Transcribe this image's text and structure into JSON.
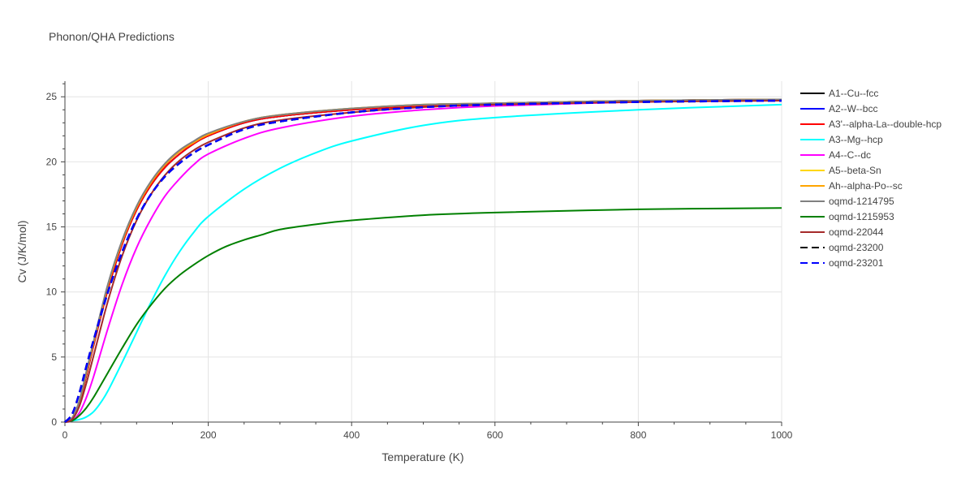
{
  "chart_data": {
    "type": "line",
    "title": "Phonon/QHA Predictions",
    "xlabel": "Temperature (K)",
    "ylabel": "Cv (J/K/mol)",
    "xlim": [
      0,
      1000
    ],
    "ylim": [
      0,
      26.2
    ],
    "xticks": [
      0,
      200,
      400,
      600,
      800,
      1000
    ],
    "yticks": [
      0,
      5,
      10,
      15,
      20,
      25
    ],
    "grid": true,
    "legend_position": "right",
    "series": [
      {
        "name": "A1--Cu--fcc",
        "color": "#000000",
        "dash": "solid",
        "x": [
          0,
          10,
          20,
          30,
          40,
          60,
          80,
          100,
          120,
          140,
          160,
          180,
          200,
          250,
          300,
          400,
          500,
          600,
          800,
          1000
        ],
        "y": [
          0,
          0.3,
          1.5,
          3.6,
          5.9,
          10.2,
          13.7,
          16.3,
          18.2,
          19.6,
          20.6,
          21.4,
          22.0,
          23.0,
          23.5,
          24.0,
          24.3,
          24.5,
          24.7,
          24.8
        ]
      },
      {
        "name": "A2--W--bcc",
        "color": "#0000ff",
        "dash": "solid",
        "x": [
          0,
          10,
          20,
          30,
          40,
          60,
          80,
          100,
          120,
          140,
          160,
          180,
          200,
          250,
          300,
          400,
          500,
          600,
          800,
          1000
        ],
        "y": [
          0,
          0.3,
          1.5,
          3.6,
          5.9,
          10.2,
          13.7,
          16.3,
          18.2,
          19.6,
          20.6,
          21.4,
          22.0,
          23.0,
          23.5,
          24.0,
          24.3,
          24.5,
          24.7,
          24.8
        ]
      },
      {
        "name": "A3'--alpha-La--double-hcp",
        "color": "#ff0000",
        "dash": "solid",
        "x": [
          0,
          10,
          20,
          30,
          40,
          60,
          80,
          100,
          120,
          140,
          160,
          180,
          200,
          250,
          300,
          400,
          500,
          600,
          800,
          1000
        ],
        "y": [
          0,
          0.3,
          1.5,
          3.6,
          5.9,
          10.2,
          13.7,
          16.3,
          18.2,
          19.6,
          20.6,
          21.4,
          22.0,
          23.0,
          23.5,
          24.0,
          24.3,
          24.5,
          24.7,
          24.8
        ]
      },
      {
        "name": "A3--Mg--hcp",
        "color": "#00ffff",
        "dash": "solid",
        "x": [
          0,
          20,
          30,
          40,
          50,
          60,
          80,
          100,
          120,
          140,
          160,
          180,
          200,
          250,
          300,
          350,
          400,
          500,
          600,
          800,
          1000
        ],
        "y": [
          0,
          0.2,
          0.4,
          0.8,
          1.5,
          2.4,
          4.6,
          6.9,
          9.2,
          11.3,
          13.1,
          14.6,
          15.8,
          17.9,
          19.5,
          20.7,
          21.6,
          22.8,
          23.4,
          24.0,
          24.4
        ]
      },
      {
        "name": "A4--C--dc",
        "color": "#ff00ff",
        "dash": "solid",
        "x": [
          0,
          10,
          20,
          30,
          40,
          60,
          80,
          100,
          120,
          140,
          160,
          180,
          200,
          250,
          300,
          400,
          500,
          600,
          800,
          1000
        ],
        "y": [
          0,
          0.1,
          0.7,
          1.9,
          3.5,
          7.2,
          10.6,
          13.4,
          15.6,
          17.4,
          18.7,
          19.8,
          20.6,
          21.8,
          22.6,
          23.5,
          24.0,
          24.3,
          24.6,
          24.8
        ]
      },
      {
        "name": "A5--beta-Sn",
        "color": "#ffd700",
        "dash": "solid",
        "x": [
          0,
          10,
          20,
          30,
          40,
          60,
          80,
          100,
          120,
          140,
          160,
          180,
          200,
          250,
          300,
          400,
          500,
          600,
          800,
          1000
        ],
        "y": [
          0,
          0.3,
          1.6,
          3.8,
          6.1,
          10.5,
          13.9,
          16.5,
          18.4,
          19.8,
          20.8,
          21.5,
          22.1,
          23.1,
          23.6,
          24.1,
          24.4,
          24.5,
          24.7,
          24.8
        ]
      },
      {
        "name": "Ah--alpha-Po--sc",
        "color": "#ffa500",
        "dash": "solid",
        "x": [
          0,
          10,
          20,
          30,
          40,
          60,
          80,
          100,
          120,
          140,
          160,
          180,
          200,
          250,
          300,
          400,
          500,
          600,
          800,
          1000
        ],
        "y": [
          0,
          0.3,
          1.6,
          3.8,
          6.1,
          10.5,
          13.9,
          16.5,
          18.4,
          19.8,
          20.8,
          21.5,
          22.1,
          23.1,
          23.6,
          24.1,
          24.4,
          24.5,
          24.7,
          24.8
        ]
      },
      {
        "name": "oqmd-1214795",
        "color": "#808080",
        "dash": "solid",
        "x": [
          0,
          10,
          20,
          30,
          40,
          60,
          80,
          100,
          120,
          140,
          160,
          180,
          200,
          250,
          300,
          400,
          500,
          600,
          800,
          1000
        ],
        "y": [
          0,
          0.3,
          1.6,
          3.9,
          6.2,
          10.6,
          14.0,
          16.6,
          18.5,
          19.9,
          20.9,
          21.6,
          22.2,
          23.1,
          23.6,
          24.1,
          24.4,
          24.5,
          24.7,
          24.8
        ]
      },
      {
        "name": "oqmd-1215953",
        "color": "#008000",
        "dash": "solid",
        "x": [
          0,
          10,
          20,
          30,
          40,
          60,
          80,
          100,
          120,
          140,
          160,
          180,
          200,
          225,
          250,
          275,
          300,
          350,
          400,
          500,
          600,
          800,
          1000
        ],
        "y": [
          0,
          0.1,
          0.5,
          1.1,
          1.9,
          3.8,
          5.7,
          7.5,
          9.0,
          10.3,
          11.3,
          12.1,
          12.8,
          13.5,
          14.0,
          14.4,
          14.8,
          15.2,
          15.5,
          15.9,
          16.1,
          16.35,
          16.45
        ]
      },
      {
        "name": "oqmd-22044",
        "color": "#a52a2a",
        "dash": "solid",
        "x": [
          0,
          10,
          20,
          30,
          40,
          60,
          80,
          100,
          120,
          140,
          160,
          180,
          200,
          250,
          300,
          400,
          500,
          600,
          800,
          1000
        ],
        "y": [
          0,
          0.2,
          1.2,
          3.0,
          5.1,
          9.3,
          12.8,
          15.5,
          17.5,
          19.0,
          20.1,
          20.9,
          21.5,
          22.6,
          23.2,
          23.8,
          24.2,
          24.4,
          24.6,
          24.7
        ]
      },
      {
        "name": "oqmd-23200",
        "color": "#000000",
        "dash": "dash",
        "x": [
          0,
          10,
          20,
          30,
          40,
          60,
          80,
          100,
          120,
          140,
          160,
          180,
          200,
          250,
          300,
          400,
          500,
          600,
          800,
          1000
        ],
        "y": [
          0,
          0.6,
          2.2,
          4.3,
          6.3,
          10.0,
          13.1,
          15.6,
          17.5,
          18.9,
          19.9,
          20.7,
          21.3,
          22.5,
          23.1,
          23.8,
          24.2,
          24.4,
          24.6,
          24.7
        ]
      },
      {
        "name": "oqmd-23201",
        "color": "#0000ff",
        "dash": "dash",
        "x": [
          0,
          10,
          20,
          30,
          40,
          60,
          80,
          100,
          120,
          140,
          160,
          180,
          200,
          250,
          300,
          400,
          500,
          600,
          800,
          1000
        ],
        "y": [
          0,
          0.6,
          2.2,
          4.3,
          6.3,
          10.0,
          13.1,
          15.6,
          17.5,
          18.9,
          19.9,
          20.7,
          21.3,
          22.5,
          23.1,
          23.8,
          24.2,
          24.4,
          24.6,
          24.7
        ]
      }
    ]
  }
}
